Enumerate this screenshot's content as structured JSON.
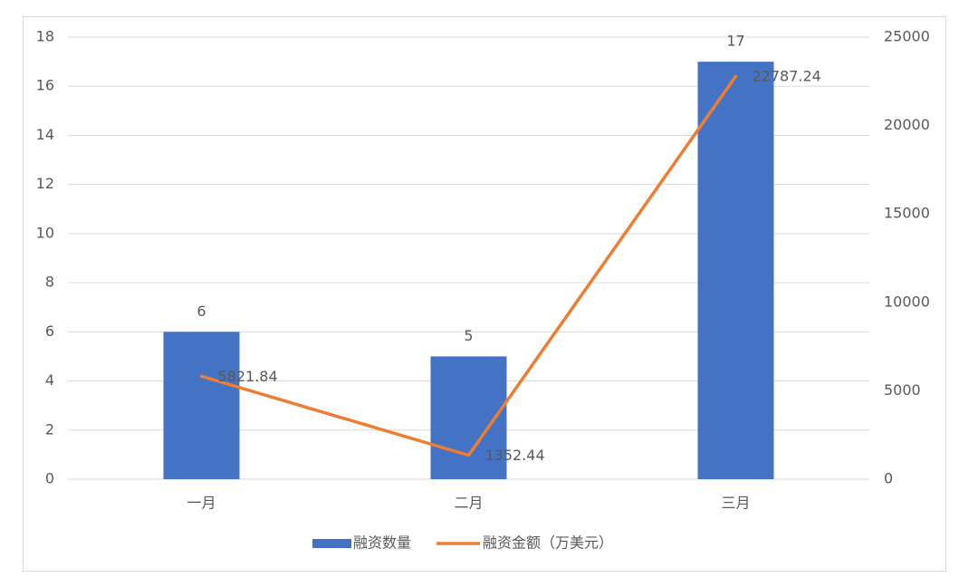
{
  "chart_data": {
    "type": "bar",
    "categories": [
      "一月",
      "二月",
      "三月"
    ],
    "series": [
      {
        "name": "融资数量",
        "type": "bar",
        "color": "#4472c4",
        "values": [
          6,
          5,
          17
        ]
      },
      {
        "name": "融资金额（万美元）",
        "type": "line",
        "axis": "y2",
        "color": "#ed7d31",
        "values": [
          5821.84,
          1352.44,
          22787.24
        ]
      }
    ],
    "ylim": [
      0,
      18
    ],
    "yticks": [
      0,
      2,
      4,
      6,
      8,
      10,
      12,
      14,
      16,
      18
    ],
    "y2lim": [
      0,
      25000
    ],
    "y2ticks": [
      0,
      5000,
      10000,
      15000,
      20000,
      25000
    ],
    "grid": true,
    "legend": "bottom"
  }
}
